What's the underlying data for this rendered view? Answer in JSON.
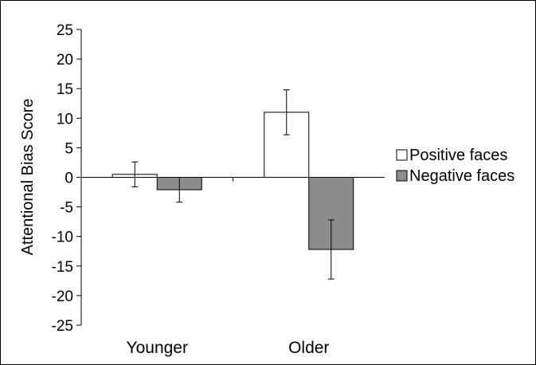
{
  "chart_data": {
    "type": "bar",
    "title": "",
    "xlabel": "",
    "ylabel": "Attentional Bias Score",
    "ylim": [
      -25,
      25
    ],
    "yticks": [
      25,
      20,
      15,
      10,
      5,
      0,
      -5,
      -10,
      -15,
      -20,
      -25
    ],
    "categories": [
      "Younger",
      "Older"
    ],
    "series": [
      {
        "name": "Positive faces",
        "values": [
          0.5,
          11.0
        ],
        "error": [
          2.1,
          3.8
        ],
        "color": "#ffffff"
      },
      {
        "name": "Negative faces",
        "values": [
          -2.1,
          -12.2
        ],
        "error": [
          2.1,
          5.0
        ],
        "color": "#8c8c8c"
      }
    ],
    "legend_position": "right",
    "grid": false
  }
}
